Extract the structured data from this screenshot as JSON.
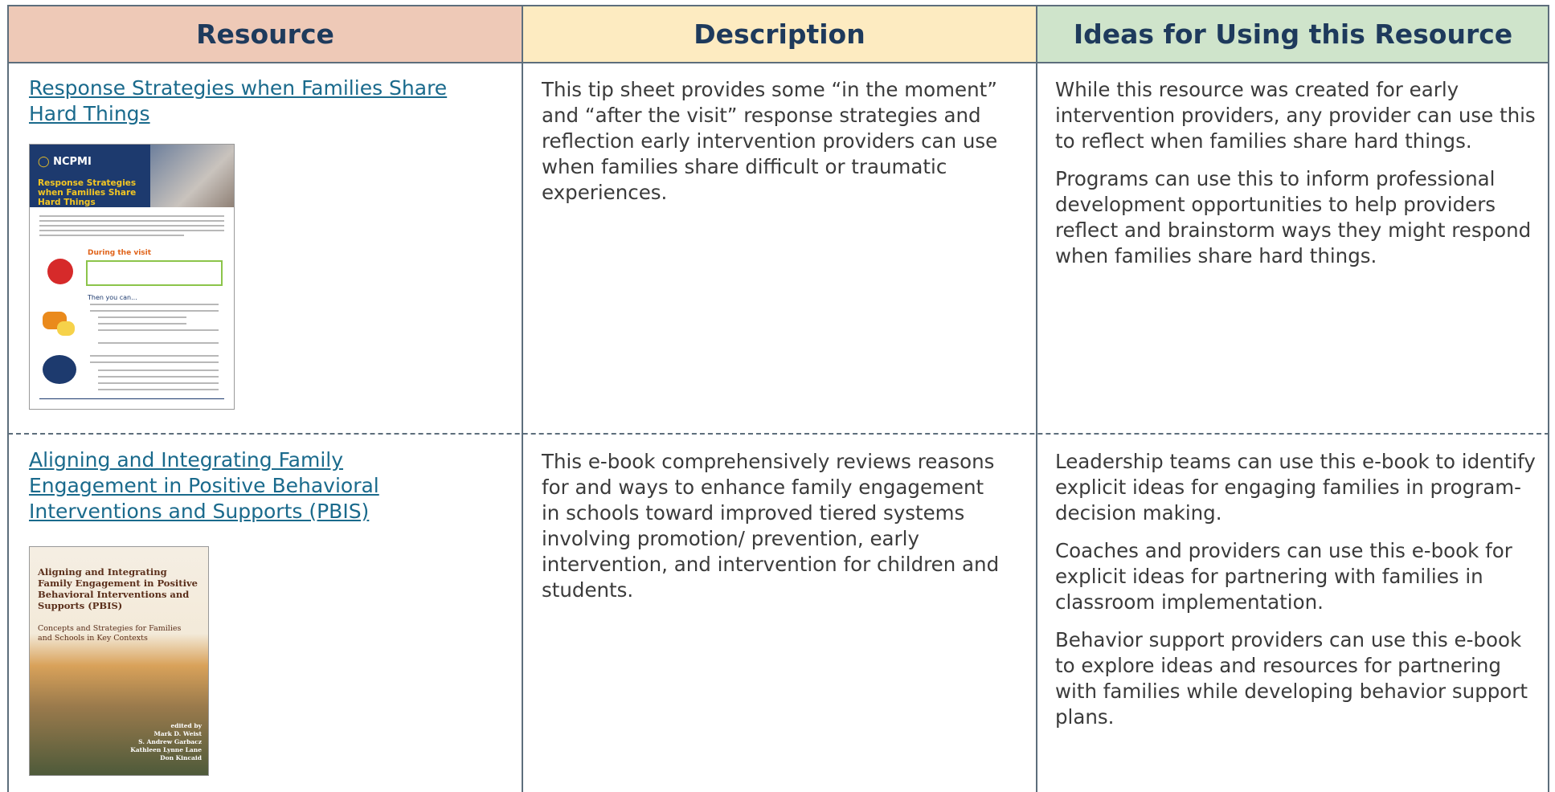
{
  "table": {
    "headers": [
      "Resource",
      "Description",
      "Ideas for Using this Resource"
    ],
    "rows": [
      {
        "resource": {
          "link": "Response Strategies when Families Share Hard Things",
          "thumbnail": {
            "logo": "NCPMI",
            "title": "Response Strategies when Families Share Hard Things",
            "section": "During the visit",
            "subsection": "Then you can..."
          }
        },
        "description": "This tip sheet provides some “in the moment” and “after the visit” response strategies and reflection early intervention providers can use when families share difficult or traumatic experiences.",
        "ideas": [
          "While this resource was created for early intervention providers, any provider can use this to reflect when families share hard things.",
          "Programs can use this to inform professional development opportunities to help providers reflect and brainstorm ways they might respond when families share hard things."
        ]
      },
      {
        "resource": {
          "link": "Aligning and Integrating Family Engagement in Positive Behavioral Interventions and Supports (PBIS)",
          "thumbnail": {
            "title": "Aligning and Integrating Family Engagement in Positive Behavioral Interventions and Supports (PBIS)",
            "subtitle": "Concepts and Strategies for Families and Schools in Key Contexts",
            "editors_label": "edited by",
            "editors": [
              "Mark D. Weist",
              "S. Andrew Garbacz",
              "Kathleen Lynne Lane",
              "Don Kincaid"
            ]
          }
        },
        "description": "This e-book comprehensively reviews reasons for and ways to enhance family engagement in schools toward improved tiered systems involving promotion/ prevention, early intervention, and intervention for children and students.",
        "ideas": [
          "Leadership teams can use this e-book to identify explicit ideas for engaging families in program-decision making.",
          "Coaches and providers can use this e-book for explicit ideas for partnering with families in classroom implementation.",
          "Behavior support providers can use this e-book to explore ideas and resources for partnering with families while developing behavior support plans."
        ]
      }
    ]
  }
}
